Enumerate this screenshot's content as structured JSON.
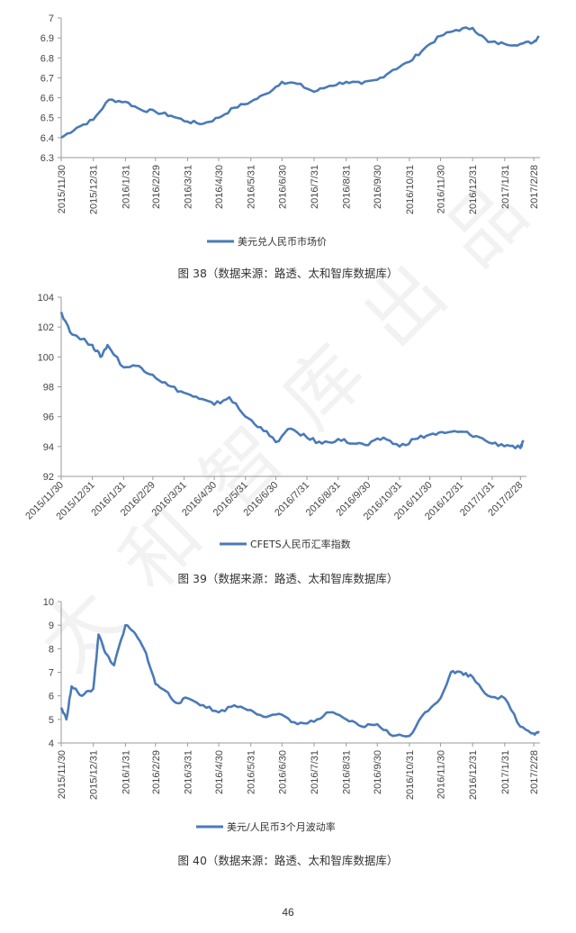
{
  "page_number": "46",
  "watermark": "太和智库出品",
  "colors": {
    "line": "#4a7ab8",
    "axis": "#9a9a9a",
    "text": "#444444"
  },
  "charts": [
    {
      "caption": "图 38（数据来源：路透、太和智库数据库）",
      "legend": "美元兑人民币市场价"
    },
    {
      "caption": "图 39（数据来源：路透、太和智库数据库）",
      "legend": "CFETS人民币汇率指数"
    },
    {
      "caption": "图 40（数据来源：路透、太和智库数据库）",
      "legend": "美元/人民币3个月波动率"
    }
  ],
  "chart_data": [
    {
      "type": "line",
      "title": "",
      "series": [
        {
          "name": "美元兑人民币市场价",
          "x": [
            "2015-11-30",
            "2015-12-15",
            "2015-12-31",
            "2016-01-15",
            "2016-01-31",
            "2016-02-15",
            "2016-02-29",
            "2016-03-15",
            "2016-03-31",
            "2016-04-15",
            "2016-04-30",
            "2016-05-15",
            "2016-05-31",
            "2016-06-15",
            "2016-06-30",
            "2016-07-15",
            "2016-07-31",
            "2016-08-15",
            "2016-08-31",
            "2016-09-15",
            "2016-09-30",
            "2016-10-15",
            "2016-10-31",
            "2016-11-15",
            "2016-11-30",
            "2016-12-15",
            "2016-12-31",
            "2017-01-15",
            "2017-01-31",
            "2017-02-15",
            "2017-02-28",
            "2017-03-05"
          ],
          "values": [
            6.4,
            6.45,
            6.49,
            6.59,
            6.58,
            6.54,
            6.53,
            6.51,
            6.48,
            6.47,
            6.5,
            6.55,
            6.58,
            6.62,
            6.68,
            6.67,
            6.63,
            6.66,
            6.68,
            6.67,
            6.69,
            6.74,
            6.78,
            6.85,
            6.91,
            6.94,
            6.95,
            6.88,
            6.87,
            6.87,
            6.88,
            6.91
          ]
        }
      ],
      "xlabels": [
        "2015/11/30",
        "2015/12/31",
        "2016/1/31",
        "2016/2/29",
        "2016/3/31",
        "2016/4/30",
        "2016/5/31",
        "2016/6/30",
        "2016/7/31",
        "2016/8/31",
        "2016/9/30",
        "2016/10/31",
        "2016/11/30",
        "2016/12/31",
        "2017/1/31",
        "2017/2/28"
      ],
      "yticks": [
        "6.3",
        "6.4",
        "6.5",
        "6.6",
        "6.7",
        "6.8",
        "6.9",
        "7"
      ],
      "ylim": [
        6.3,
        7.0
      ],
      "grid": false,
      "legend_position": "bottom"
    },
    {
      "type": "line",
      "title": "",
      "series": [
        {
          "name": "CFETS人民币汇率指数",
          "x": [
            "2015-11-30",
            "2015-12-11",
            "2015-12-31",
            "2016-01-08",
            "2016-01-15",
            "2016-01-31",
            "2016-02-15",
            "2016-02-29",
            "2016-03-15",
            "2016-03-31",
            "2016-04-15",
            "2016-04-30",
            "2016-05-15",
            "2016-05-31",
            "2016-06-15",
            "2016-06-30",
            "2016-07-15",
            "2016-07-31",
            "2016-08-15",
            "2016-08-31",
            "2016-09-15",
            "2016-09-30",
            "2016-10-15",
            "2016-10-31",
            "2016-11-15",
            "2016-11-30",
            "2016-12-15",
            "2016-12-31",
            "2017-01-15",
            "2017-01-31",
            "2017-02-15",
            "2017-02-28",
            "2017-03-03"
          ],
          "values": [
            103.0,
            101.5,
            100.8,
            100.0,
            100.8,
            99.3,
            99.4,
            98.8,
            98.1,
            97.6,
            97.2,
            96.8,
            97.3,
            96.0,
            95.3,
            94.3,
            95.2,
            94.6,
            94.2,
            94.5,
            94.2,
            94.1,
            94.6,
            94.0,
            94.5,
            94.8,
            94.9,
            95.0,
            94.7,
            94.2,
            94.1,
            93.9,
            94.3
          ]
        }
      ],
      "xlabels": [
        "2015/11/30",
        "2015/12/31",
        "2016/1/31",
        "2016/2/29",
        "2016/3/31",
        "2016/4/30",
        "2016/5/31",
        "2016/6/30",
        "2016/7/31",
        "2016/8/31",
        "2016/9/30",
        "2016/10/31",
        "2016/11/30",
        "2016/12/31",
        "2017/1/31",
        "2017/2/28"
      ],
      "yticks": [
        "92",
        "94",
        "96",
        "98",
        "100",
        "102",
        "104"
      ],
      "ylim": [
        92,
        104
      ],
      "grid": false,
      "legend_position": "bottom"
    },
    {
      "type": "line",
      "title": "",
      "series": [
        {
          "name": "美元/人民币3个月波动率",
          "x": [
            "2015-11-30",
            "2015-12-05",
            "2015-12-10",
            "2015-12-20",
            "2015-12-31",
            "2016-01-05",
            "2016-01-12",
            "2016-01-20",
            "2016-01-31",
            "2016-02-10",
            "2016-02-20",
            "2016-02-29",
            "2016-03-10",
            "2016-03-20",
            "2016-03-31",
            "2016-04-15",
            "2016-04-30",
            "2016-05-15",
            "2016-05-31",
            "2016-06-15",
            "2016-06-30",
            "2016-07-15",
            "2016-07-31",
            "2016-08-15",
            "2016-08-31",
            "2016-09-15",
            "2016-09-30",
            "2016-10-15",
            "2016-10-31",
            "2016-11-15",
            "2016-11-30",
            "2016-12-10",
            "2016-12-20",
            "2016-12-31",
            "2017-01-15",
            "2017-01-31",
            "2017-02-15",
            "2017-02-28",
            "2017-03-05"
          ],
          "values": [
            5.5,
            5.0,
            6.4,
            6.0,
            6.3,
            8.6,
            7.8,
            7.3,
            9.0,
            8.6,
            7.8,
            6.5,
            6.2,
            5.7,
            5.9,
            5.6,
            5.3,
            5.6,
            5.4,
            5.1,
            5.2,
            4.8,
            4.9,
            5.3,
            5.0,
            4.7,
            4.8,
            4.3,
            4.3,
            5.3,
            5.9,
            7.0,
            7.0,
            6.8,
            6.0,
            5.9,
            4.7,
            4.4,
            4.5
          ]
        }
      ],
      "xlabels": [
        "2015/11/30",
        "2015/12/31",
        "2016/1/31",
        "2016/2/29",
        "2016/3/31",
        "2016/4/30",
        "2016/5/31",
        "2016/6/30",
        "2016/7/31",
        "2016/8/31",
        "2016/9/30",
        "2016/10/31",
        "2016/11/30",
        "2016/12/31",
        "2017/1/31",
        "2017/2/28"
      ],
      "yticks": [
        "4",
        "5",
        "6",
        "7",
        "8",
        "9",
        "10"
      ],
      "ylim": [
        4,
        10
      ],
      "grid": false,
      "legend_position": "bottom"
    }
  ]
}
